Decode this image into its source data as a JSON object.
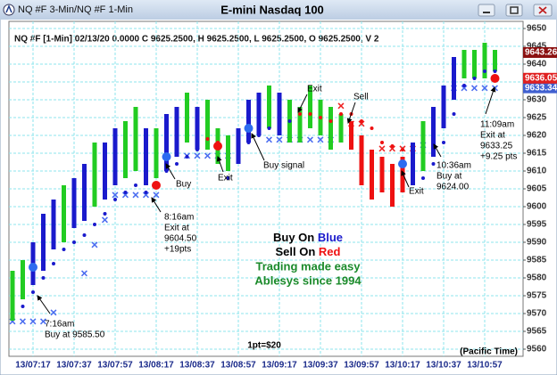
{
  "window_title": "NQ #F 3-Min/NQ #F 1-Min",
  "chart_data": {
    "type": "bar",
    "title": "E-mini Nasdaq 100",
    "info": "NQ #F [1-Min] 02/13/20  0.0000 C 9625.2500, H 9625.2500, L 9625.2500, O 9625.2500, V 2",
    "categories": [
      null,
      null,
      "13/07:17",
      null,
      null,
      null,
      "13/07:37",
      null,
      null,
      null,
      "13/07:57",
      null,
      null,
      null,
      "13/08:17",
      null,
      null,
      null,
      "13/08:37",
      null,
      null,
      null,
      "13/08:57",
      null,
      null,
      null,
      "13/09:17",
      null,
      null,
      null,
      "13/09:37",
      null,
      null,
      null,
      "13/09:57",
      null,
      null,
      null,
      "13/10:17",
      null,
      null,
      null,
      "13/10:37",
      null,
      null,
      null,
      "13/10:57",
      null
    ],
    "bars": {
      "high": [
        9582,
        9585,
        9590,
        9598,
        9602,
        9606,
        9608,
        9612,
        9618,
        9618,
        9622,
        9624,
        9628,
        9622,
        9622,
        9626,
        9628,
        9632,
        9628,
        9630,
        9622,
        9620,
        9622,
        9630,
        9632,
        9634,
        9632,
        9630,
        9628,
        9634,
        9630,
        9628,
        9626,
        9624,
        9620,
        9616,
        9614,
        9612,
        9614,
        9618,
        9624,
        9628,
        9634,
        9642,
        9644,
        9644,
        9646,
        9644
      ],
      "low": [
        9568,
        9574,
        9578,
        9582,
        9588,
        9590,
        9594,
        9596,
        9600,
        9602,
        9606,
        9608,
        9610,
        9606,
        9608,
        9610,
        9614,
        9618,
        9616,
        9616,
        9612,
        9610,
        9612,
        9618,
        9620,
        9622,
        9620,
        9618,
        9618,
        9622,
        9620,
        9616,
        9618,
        9616,
        9606,
        9602,
        9604,
        9600,
        9604,
        9606,
        9610,
        9614,
        9622,
        9630,
        9636,
        9636,
        9636,
        9638
      ],
      "colors": [
        "#22cc22",
        "#22cc22",
        "#1a1acc",
        "#1a1acc",
        "#1a1acc",
        "#22cc22",
        "#1a1acc",
        "#1a1acc",
        "#22cc22",
        "#1a1acc",
        "#1a1acc",
        "#22cc22",
        "#22cc22",
        "#1a1acc",
        "#22cc22",
        "#1a1acc",
        "#1a1acc",
        "#22cc22",
        "#1a1acc",
        "#22cc22",
        "#22cc22",
        "#22cc22",
        "#1a1acc",
        "#1a1acc",
        "#1a1acc",
        "#22cc22",
        "#1a1acc",
        "#22cc22",
        "#22cc22",
        "#22cc22",
        "#22cc22",
        "#22cc22",
        "#22cc22",
        "#ee1111",
        "#ee1111",
        "#ee1111",
        "#ee1111",
        "#ee1111",
        "#ee1111",
        "#1a1acc",
        "#22cc22",
        "#1a1acc",
        "#1a1acc",
        "#1a1acc",
        "#22cc22",
        "#22cc22",
        "#22cc22",
        "#22cc22"
      ]
    },
    "stops": {
      "values": [
        null,
        9572,
        9576,
        9580,
        9584,
        9588,
        9590,
        9592,
        9595,
        9598,
        9602,
        9604,
        9606,
        9604,
        9606,
        9610,
        9612,
        9614,
        9616,
        9619,
        9618,
        9608,
        9616,
        9618,
        9620,
        9622,
        9622,
        9624,
        9626,
        9626,
        9625,
        9624,
        9626,
        9626,
        9624,
        9622,
        9618,
        9617,
        9616,
        9614,
        9608,
        9612,
        9618,
        9626,
        9634,
        9636,
        9638,
        9638
      ],
      "colors": [
        "#1a1acc",
        "#1a1acc",
        "#1a1acc",
        "#1a1acc",
        "#1a1acc",
        "#1a1acc",
        "#1a1acc",
        "#1a1acc",
        "#1a1acc",
        "#1a1acc",
        "#1a1acc",
        "#1a1acc",
        "#1a1acc",
        "#1a1acc",
        "#1a1acc",
        "#1a1acc",
        "#1a1acc",
        "#1a1acc",
        "#1a1acc",
        "#ee1111",
        "#ee1111",
        "#1a1acc",
        "#1a1acc",
        "#1a1acc",
        "#1a1acc",
        "#1a1acc",
        "#1a1acc",
        "#1a1acc",
        "#ee1111",
        "#ee1111",
        "#ee1111",
        "#ee1111",
        "#ee1111",
        "#ee1111",
        "#ee1111",
        "#ee1111",
        "#ee1111",
        "#ee1111",
        "#ee1111",
        "#1a1acc",
        "#1a1acc",
        "#1a1acc",
        "#1a1acc",
        "#1a1acc",
        "#1a1acc",
        "#1a1acc",
        "#1a1acc",
        "#1a1acc"
      ]
    },
    "x_marks": {
      "values": [
        9567.5,
        9567.5,
        9567.5,
        9567.5,
        9570,
        null,
        null,
        9581,
        9589,
        9596,
        9603,
        9603,
        9603,
        9603,
        9603,
        null,
        null,
        9614,
        9614,
        9614,
        9614,
        9614,
        null,
        null,
        null,
        9618.5,
        9618.5,
        9618.5,
        9618.5,
        9618.5,
        9618.5,
        9618.5,
        9628,
        9623,
        9623,
        null,
        9616,
        9616,
        9616,
        9616,
        9617,
        null,
        null,
        9633,
        9633,
        9633,
        9633,
        9633
      ],
      "colors": [
        "#4a6cf0",
        "#4a6cf0",
        "#4a6cf0",
        "#4a6cf0",
        "#4a6cf0",
        "#4a6cf0",
        "#4a6cf0",
        "#4a6cf0",
        "#4a6cf0",
        "#4a6cf0",
        "#4a6cf0",
        "#4a6cf0",
        "#4a6cf0",
        "#4a6cf0",
        "#4a6cf0",
        "#4a6cf0",
        "#4a6cf0",
        "#4a6cf0",
        "#4a6cf0",
        "#4a6cf0",
        "#4a6cf0",
        "#4a6cf0",
        "#4a6cf0",
        "#4a6cf0",
        "#4a6cf0",
        "#4a6cf0",
        "#4a6cf0",
        "#4a6cf0",
        "#4a6cf0",
        "#4a6cf0",
        "#4a6cf0",
        "#4a6cf0",
        "#ee2222",
        "#ee2222",
        "#ee2222",
        "#ee2222",
        "#ee2222",
        "#ee2222",
        "#ee2222",
        "#ee2222",
        "#4a6cf0",
        "#4a6cf0",
        "#4a6cf0",
        "#4a6cf0",
        "#4a6cf0",
        "#4a6cf0",
        "#4a6cf0",
        "#4a6cf0"
      ]
    },
    "signals": [
      {
        "bar": 2,
        "price": 9583,
        "color": "#2d6cf0"
      },
      {
        "bar": 14,
        "price": 9606,
        "color": "#ee1111"
      },
      {
        "bar": 15,
        "price": 9614,
        "color": "#2d6cf0"
      },
      {
        "bar": 20,
        "price": 9617,
        "color": "#ee1111"
      },
      {
        "bar": 23,
        "price": 9622,
        "color": "#2d6cf0"
      },
      {
        "bar": 38,
        "price": 9612,
        "color": "#2d6cf0"
      },
      {
        "bar": 47,
        "price": 9636,
        "color": "#ee1111"
      }
    ],
    "price_tags": {
      "values": [
        9633.34,
        9636.05,
        9643.26
      ],
      "colors": [
        "#4060d0",
        "#e02020",
        "#8b1010"
      ]
    },
    "annotations": [
      [
        "7:16am",
        "Buy at 9585.50"
      ],
      [
        "Buy"
      ],
      [
        "8:16am",
        "Exit at",
        "9604.50",
        "+19pts"
      ],
      [
        "Exit"
      ],
      [
        "Buy signal"
      ],
      [
        "Exit"
      ],
      [
        "Sell"
      ],
      [
        "Exit"
      ],
      [
        "10:36am",
        "Buy at",
        "9624.00"
      ],
      [
        "11:09am",
        "Exit at",
        "9633.25",
        "+9.25 pts"
      ]
    ],
    "legend_text": {
      "buy": {
        "prefix": "Buy On",
        "word": "Blue",
        "color": "#1a1acc"
      },
      "sell": {
        "prefix": "Sell On",
        "word": "Red",
        "color": "#ee1111"
      },
      "lines": [
        "Trading made easy",
        "Ablesys since 1994"
      ],
      "lines_color": "#1a8a2a"
    },
    "footnote": "1pt=$20",
    "timezone": "(Pacific Time)",
    "ylim": [
      9558,
      9652
    ],
    "yticks": [
      9560,
      9565,
      9570,
      9575,
      9580,
      9585,
      9590,
      9595,
      9600,
      9605,
      9610,
      9615,
      9620,
      9625,
      9630,
      9635,
      9640,
      9645,
      9650
    ],
    "grid": true
  }
}
